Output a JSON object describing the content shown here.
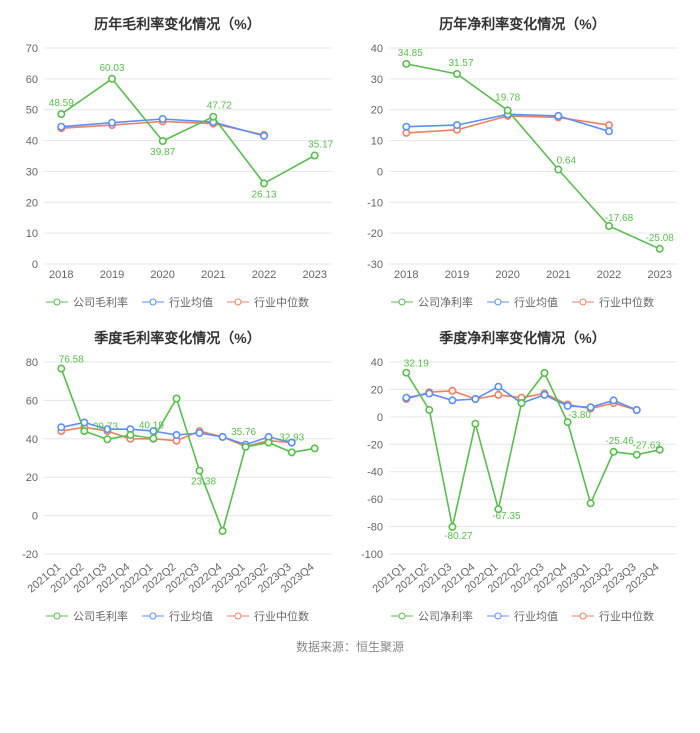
{
  "source_text": "数据来源：恒生聚源",
  "colors": {
    "company": "#58be4d",
    "avg": "#5b8ff9",
    "median": "#f08060",
    "grid": "#e6e6e6",
    "axis": "#cccccc",
    "tick_text": "#666666",
    "label_text": "#333333",
    "title": "#333333",
    "background": "#ffffff"
  },
  "typography": {
    "title_fontsize": 14,
    "title_fontweight": "bold",
    "tick_fontsize": 11,
    "legend_fontsize": 11,
    "data_label_fontsize": 10
  },
  "marker": {
    "shape": "circle-open",
    "radius": 3.2,
    "line_width": 1.6
  },
  "panels": [
    {
      "id": "tl",
      "title": "历年毛利率变化情况（%）",
      "categories": [
        "2018",
        "2019",
        "2020",
        "2021",
        "2022",
        "2023"
      ],
      "x_rotation": 0,
      "y": {
        "min": 0,
        "max": 70,
        "step": 10
      },
      "legend": [
        "公司毛利率",
        "行业均值",
        "行业中位数"
      ],
      "series": [
        {
          "name": "公司毛利率",
          "color_key": "company",
          "values": [
            48.59,
            60.03,
            39.87,
            47.72,
            26.13,
            35.17
          ],
          "labels": [
            {
              "i": 0,
              "text": "48.59",
              "dx": 0,
              "dy": -8
            },
            {
              "i": 1,
              "text": "60.03",
              "dx": 0,
              "dy": -8
            },
            {
              "i": 2,
              "text": "39.87",
              "dx": 0,
              "dy": 14
            },
            {
              "i": 3,
              "text": "47.72",
              "dx": 6,
              "dy": -8
            },
            {
              "i": 4,
              "text": "26.13",
              "dx": 0,
              "dy": 14
            },
            {
              "i": 5,
              "text": "35.17",
              "dx": 6,
              "dy": -8
            }
          ]
        },
        {
          "name": "行业均值",
          "color_key": "avg",
          "values": [
            44.5,
            45.8,
            47.0,
            46.0,
            41.5,
            null
          ],
          "labels": []
        },
        {
          "name": "行业中位数",
          "color_key": "median",
          "values": [
            44.0,
            45.0,
            46.2,
            45.5,
            41.8,
            null
          ],
          "labels": []
        }
      ]
    },
    {
      "id": "tr",
      "title": "历年净利率变化情况（%）",
      "categories": [
        "2018",
        "2019",
        "2020",
        "2021",
        "2022",
        "2023"
      ],
      "x_rotation": 0,
      "y": {
        "min": -30,
        "max": 40,
        "step": 10
      },
      "legend": [
        "公司净利率",
        "行业均值",
        "行业中位数"
      ],
      "series": [
        {
          "name": "公司净利率",
          "color_key": "company",
          "values": [
            34.85,
            31.57,
            19.78,
            0.64,
            -17.68,
            -25.08
          ],
          "labels": [
            {
              "i": 0,
              "text": "34.85",
              "dx": 4,
              "dy": -8
            },
            {
              "i": 1,
              "text": "31.57",
              "dx": 4,
              "dy": -8
            },
            {
              "i": 2,
              "text": "19.78",
              "dx": 0,
              "dy": -10
            },
            {
              "i": 3,
              "text": "0.64",
              "dx": 8,
              "dy": -6
            },
            {
              "i": 4,
              "text": "-17.68",
              "dx": 10,
              "dy": -5
            },
            {
              "i": 5,
              "text": "-25.08",
              "dx": 0,
              "dy": -8
            }
          ]
        },
        {
          "name": "行业均值",
          "color_key": "avg",
          "values": [
            14.5,
            15.0,
            18.5,
            18.0,
            13.0,
            null
          ],
          "labels": []
        },
        {
          "name": "行业中位数",
          "color_key": "median",
          "values": [
            12.5,
            13.5,
            18.0,
            17.5,
            15.0,
            null
          ],
          "labels": []
        }
      ]
    },
    {
      "id": "bl",
      "title": "季度毛利率变化情况（%）",
      "categories": [
        "2021Q1",
        "2021Q2",
        "2021Q3",
        "2021Q4",
        "2022Q1",
        "2022Q2",
        "2022Q3",
        "2022Q4",
        "2023Q1",
        "2023Q2",
        "2023Q3",
        "2023Q4"
      ],
      "x_rotation": 40,
      "y": {
        "min": -20,
        "max": 80,
        "step": 20
      },
      "legend": [
        "公司毛利率",
        "行业均值",
        "行业中位数"
      ],
      "series": [
        {
          "name": "公司毛利率",
          "color_key": "company",
          "values": [
            76.58,
            44.0,
            39.73,
            42.0,
            40.19,
            61.0,
            23.38,
            -8.0,
            35.76,
            38.0,
            32.93,
            35.0
          ],
          "labels": [
            {
              "i": 0,
              "text": "76.58",
              "dx": 10,
              "dy": -6
            },
            {
              "i": 2,
              "text": "39.73",
              "dx": -2,
              "dy": -10
            },
            {
              "i": 4,
              "text": "40.19",
              "dx": -2,
              "dy": -10
            },
            {
              "i": 6,
              "text": "23.38",
              "dx": 4,
              "dy": 14
            },
            {
              "i": 8,
              "text": "35.76",
              "dx": -2,
              "dy": -12
            },
            {
              "i": 10,
              "text": "32.93",
              "dx": 0,
              "dy": -12
            }
          ]
        },
        {
          "name": "行业均值",
          "color_key": "avg",
          "values": [
            46.0,
            48.5,
            45.0,
            45.0,
            44.0,
            42.0,
            43.0,
            41.0,
            37.0,
            41.0,
            38.0,
            null
          ],
          "labels": []
        },
        {
          "name": "行业中位数",
          "color_key": "median",
          "values": [
            44.0,
            46.0,
            44.0,
            40.0,
            40.0,
            39.0,
            44.0,
            41.0,
            36.0,
            39.0,
            38.0,
            null
          ],
          "labels": []
        }
      ]
    },
    {
      "id": "br",
      "title": "季度净利率变化情况（%）",
      "categories": [
        "2021Q1",
        "2021Q2",
        "2021Q3",
        "2021Q4",
        "2022Q1",
        "2022Q2",
        "2022Q3",
        "2022Q4",
        "2023Q1",
        "2023Q2",
        "2023Q3",
        "2023Q4"
      ],
      "x_rotation": 40,
      "y": {
        "min": -100,
        "max": 40,
        "step": 20
      },
      "legend": [
        "公司净利率",
        "行业均值",
        "行业中位数"
      ],
      "series": [
        {
          "name": "公司净利率",
          "color_key": "company",
          "values": [
            32.19,
            5.0,
            -80.27,
            -5.0,
            -67.35,
            10.0,
            32.0,
            -3.8,
            -63.0,
            -25.46,
            -27.63,
            -24.0
          ],
          "labels": [
            {
              "i": 0,
              "text": "32.19",
              "dx": 10,
              "dy": -6
            },
            {
              "i": 2,
              "text": "-80.27",
              "dx": 6,
              "dy": 12
            },
            {
              "i": 4,
              "text": "-67.35",
              "dx": 8,
              "dy": 10
            },
            {
              "i": 7,
              "text": "-3.80",
              "dx": 12,
              "dy": -4
            },
            {
              "i": 9,
              "text": "-25.46",
              "dx": 6,
              "dy": -8
            },
            {
              "i": 10,
              "text": "-27.63",
              "dx": 10,
              "dy": -6
            }
          ]
        },
        {
          "name": "行业均值",
          "color_key": "avg",
          "values": [
            14.0,
            17.0,
            12.0,
            13.0,
            22.0,
            10.0,
            16.0,
            8.0,
            7.0,
            12.0,
            5.0,
            null
          ],
          "labels": []
        },
        {
          "name": "行业中位数",
          "color_key": "median",
          "values": [
            13.0,
            18.0,
            19.0,
            13.0,
            16.0,
            14.0,
            17.0,
            9.0,
            6.0,
            10.0,
            5.0,
            null
          ],
          "labels": []
        }
      ]
    }
  ]
}
